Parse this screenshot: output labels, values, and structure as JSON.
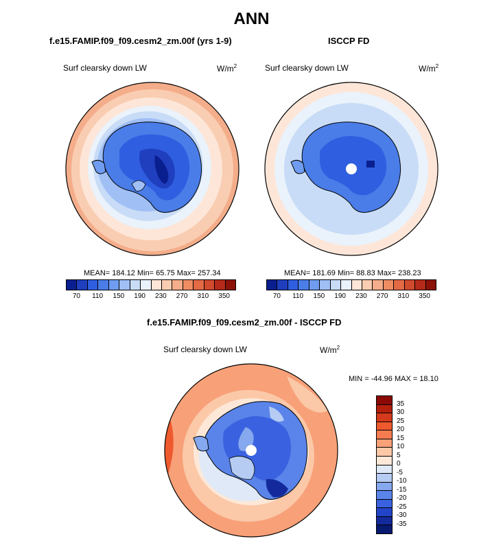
{
  "title": "ANN",
  "panels": [
    {
      "heading": "f.e15.FAMIP.f09_f09.cesm2_zm.00f (yrs 1-9)",
      "variable": "Surf clearsky down LW",
      "units_base": "W/m",
      "units_exp": "2",
      "stats": "MEAN= 184.12  Min=  65.75  Max= 257.34"
    },
    {
      "heading": "ISCCP FD",
      "variable": "Surf clearsky down LW",
      "units_base": "W/m",
      "units_exp": "2",
      "stats": "MEAN= 181.69  Min=  88.83  Max= 238.23"
    }
  ],
  "difference": {
    "heading": "f.e15.FAMIP.f09_f09.cesm2_zm.00f - ISCCP FD",
    "variable": "Surf clearsky down LW",
    "units_base": "W/m",
    "units_exp": "2",
    "stats": "MIN = -44.96 MAX =  18.10"
  },
  "colorbar": {
    "tick_labels": [
      "70",
      "110",
      "150",
      "190",
      "230",
      "270",
      "310",
      "350"
    ],
    "colors": [
      "#0a1f8f",
      "#1f3fbf",
      "#2f5fe0",
      "#4a7de8",
      "#6f9cf0",
      "#9fbff5",
      "#c8dcf7",
      "#eaf2fb",
      "#fde6d8",
      "#f9cdb2",
      "#f4ad8a",
      "#ee8c64",
      "#e46a46",
      "#d04a2e",
      "#b52a1a",
      "#8c1208"
    ]
  },
  "diff_colorbar": {
    "tick_labels": [
      "35",
      "30",
      "25",
      "20",
      "15",
      "10",
      "5",
      "0",
      "-5",
      "-10",
      "-15",
      "-20",
      "-25",
      "-30",
      "-35"
    ],
    "colors": [
      "#8c0a05",
      "#b5200d",
      "#d63a1c",
      "#ee5a2e",
      "#f57c50",
      "#f8a078",
      "#fbc8a8",
      "#fde8d8",
      "#dfe9f8",
      "#b6ccf2",
      "#86a8ee",
      "#5a84ea",
      "#3a62e0",
      "#2244c8",
      "#142a9c",
      "#081a70"
    ]
  }
}
